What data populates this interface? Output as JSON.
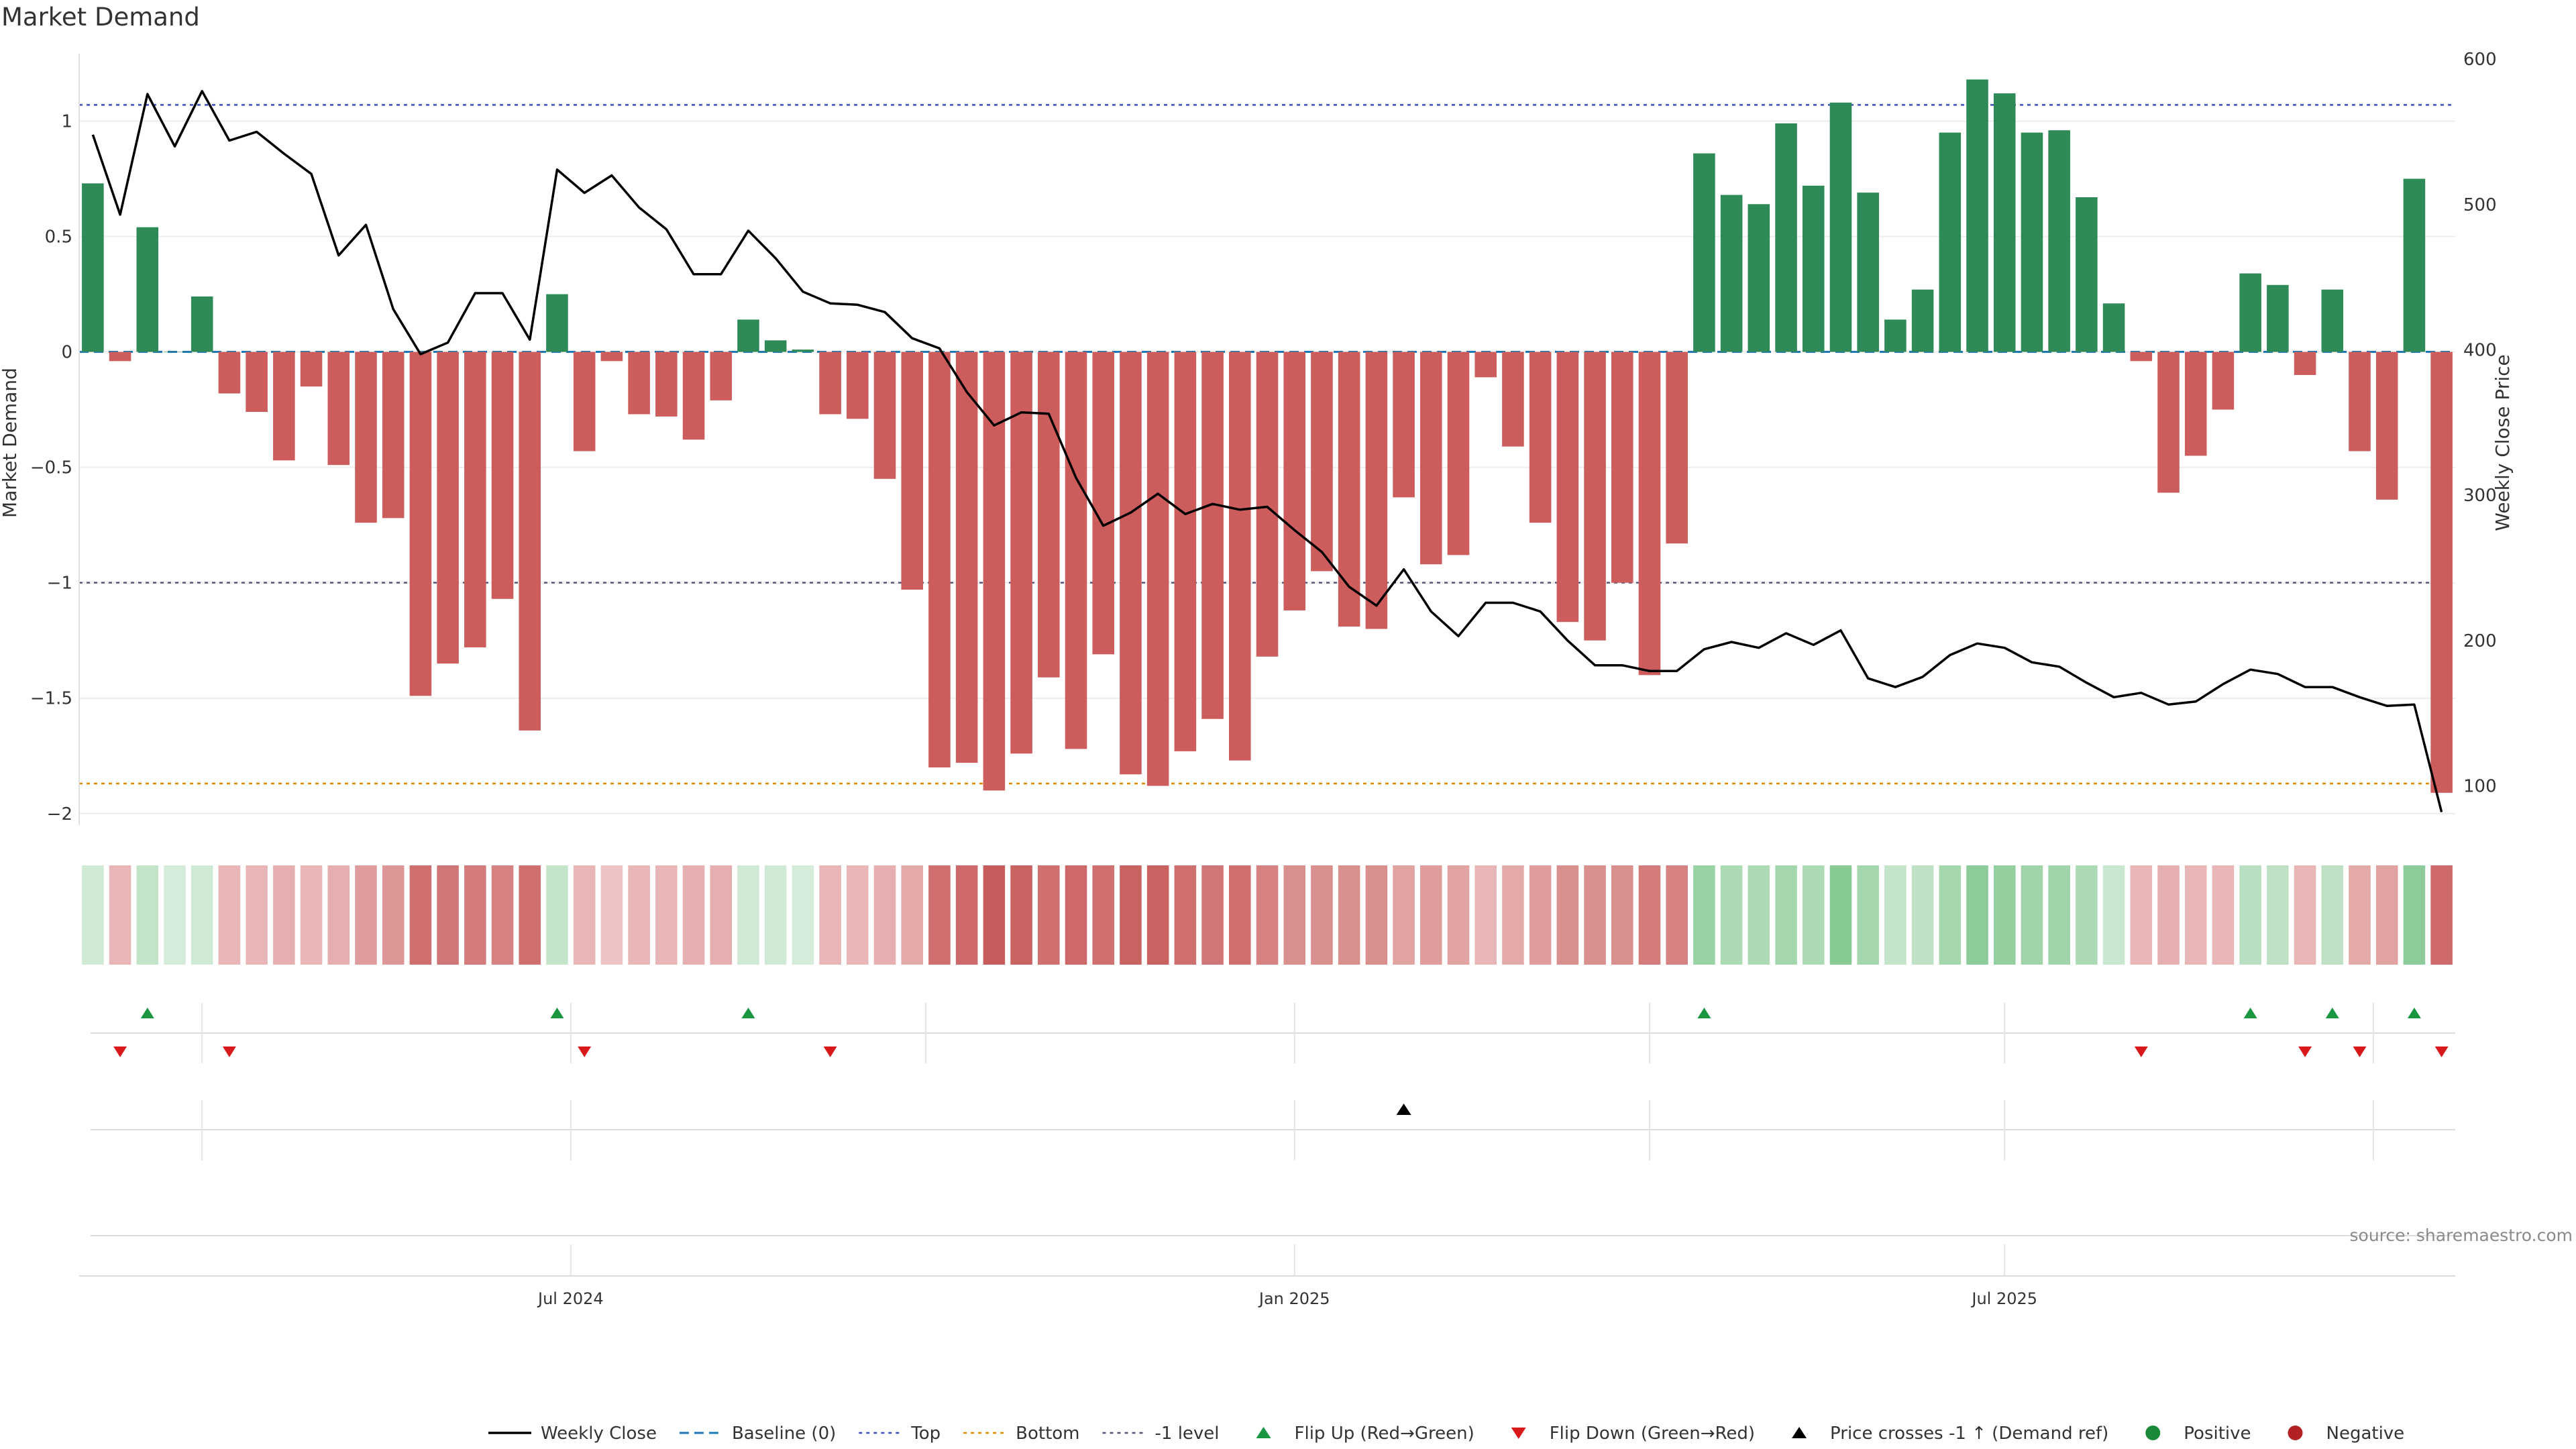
{
  "chart_data": {
    "type": "bar",
    "title": "Market Demand",
    "ylabel": "Market Demand",
    "y2label": "Weekly Close Price",
    "source": "source: sharemaestro.com",
    "ylim": [
      -2.05,
      1.35
    ],
    "y2lim": [
      73,
      613
    ],
    "yticks": [
      1,
      0.5,
      0,
      -0.5,
      -1,
      -1.5,
      -2
    ],
    "y2ticks": [
      600,
      500,
      400,
      300,
      200,
      100
    ],
    "date_ticks": [
      {
        "label": "Jul 2024",
        "week": 17.5
      },
      {
        "label": "Jan 2025",
        "week": 44
      },
      {
        "label": "Jul 2025",
        "week": 70
      }
    ],
    "reference_lines": {
      "baseline": 0,
      "top": 1.07,
      "bottom": -1.87,
      "minus_one": -1
    },
    "bars": [
      0.73,
      -0.04,
      0.54,
      0,
      0.24,
      -0.18,
      -0.26,
      -0.47,
      -0.15,
      -0.49,
      -0.74,
      -0.72,
      -1.49,
      -1.35,
      -1.28,
      -1.07,
      -1.64,
      0.25,
      -0.43,
      -0.04,
      -0.27,
      -0.28,
      -0.38,
      -0.21,
      0.14,
      0.05,
      0.01,
      -0.27,
      -0.29,
      -0.55,
      -1.03,
      -1.8,
      -1.78,
      -1.9,
      -1.74,
      -1.41,
      -1.72,
      -1.31,
      -1.83,
      -1.88,
      -1.73,
      -1.59,
      -1.77,
      -1.32,
      -1.12,
      -0.95,
      -1.19,
      -1.2,
      -0.63,
      -0.92,
      -0.88,
      -0.11,
      -0.41,
      -0.74,
      -1.17,
      -1.25,
      -1.0,
      -1.4,
      -0.83,
      0.86,
      0.68,
      0.64,
      0.99,
      0.72,
      1.08,
      0.69,
      0.14,
      0.27,
      0.95,
      1.18,
      1.12,
      0.95,
      0.96,
      0.67,
      0.21,
      -0.04,
      -0.61,
      -0.45,
      -0.25,
      0.34,
      0.29,
      -0.1,
      0.27,
      -0.43,
      -0.64,
      0.75,
      -1.91
    ],
    "price": [
      548,
      493,
      576,
      540,
      578,
      544,
      550,
      535,
      521,
      465,
      486,
      428,
      397,
      405,
      439,
      439,
      407,
      524,
      508,
      520,
      498,
      483,
      452,
      452,
      482,
      463,
      440,
      432,
      431,
      426,
      408,
      401,
      371,
      348,
      357,
      356,
      312,
      279,
      288,
      301,
      287,
      294,
      290,
      292,
      276,
      261,
      237,
      224,
      249,
      220,
      203,
      226,
      226,
      220,
      200,
      183,
      183,
      179,
      179,
      194,
      199,
      195,
      205,
      197,
      207,
      174,
      168,
      175,
      190,
      198,
      195,
      185,
      182,
      171,
      161,
      164,
      156,
      158,
      170,
      180,
      177,
      168,
      168,
      161,
      155,
      156,
      82
    ],
    "intensity": [
      0.2,
      -0.3,
      0.3,
      0.15,
      0.2,
      -0.3,
      -0.3,
      -0.35,
      -0.3,
      -0.35,
      -0.5,
      -0.55,
      -0.85,
      -0.8,
      -0.75,
      -0.7,
      -0.85,
      0.3,
      -0.3,
      -0.2,
      -0.3,
      -0.3,
      -0.35,
      -0.35,
      0.2,
      0.2,
      0.15,
      -0.3,
      -0.3,
      -0.35,
      -0.4,
      -0.85,
      -0.9,
      -1.0,
      -0.95,
      -0.85,
      -0.9,
      -0.85,
      -0.95,
      -0.95,
      -0.85,
      -0.8,
      -0.85,
      -0.7,
      -0.6,
      -0.6,
      -0.6,
      -0.6,
      -0.45,
      -0.5,
      -0.45,
      -0.3,
      -0.4,
      -0.5,
      -0.6,
      -0.6,
      -0.6,
      -0.75,
      -0.7,
      0.65,
      0.5,
      0.5,
      0.55,
      0.5,
      0.8,
      0.55,
      0.3,
      0.35,
      0.55,
      0.75,
      0.7,
      0.6,
      0.6,
      0.5,
      0.25,
      -0.3,
      -0.35,
      -0.3,
      -0.3,
      0.4,
      0.35,
      -0.3,
      0.35,
      -0.4,
      -0.45,
      0.75,
      -0.9
    ],
    "flip_up": [
      2,
      17,
      24,
      59,
      79,
      82,
      85
    ],
    "flip_down": [
      1,
      5,
      18,
      27,
      75,
      81,
      83,
      86
    ],
    "price_cross_up": [
      48
    ],
    "legend": [
      {
        "label": "Weekly Close",
        "symbol": "line",
        "color": "#000000"
      },
      {
        "label": "Baseline (0)",
        "symbol": "dash",
        "color": "#1f77b4"
      },
      {
        "label": "Top",
        "symbol": "dot",
        "color": "#3b4cc0"
      },
      {
        "label": "Bottom",
        "symbol": "dot",
        "color": "#e08a00"
      },
      {
        "label": "-1 level",
        "symbol": "dot",
        "color": "#555577"
      },
      {
        "label": "Flip Up (Red→Green)",
        "symbol": "tri-up",
        "color": "#1a9641"
      },
      {
        "label": "Flip Down (Green→Red)",
        "symbol": "tri-down",
        "color": "#d7191c"
      },
      {
        "label": "Price crosses -1 ↑ (Demand ref)",
        "symbol": "tri-up",
        "color": "#000000"
      },
      {
        "label": "Positive",
        "symbol": "circle",
        "color": "#1a8a3a"
      },
      {
        "label": "Negative",
        "symbol": "circle",
        "color": "#b22222"
      }
    ],
    "colors": {
      "positive": "#2e8b57",
      "negative": "#cd5c5c",
      "price": "#000000"
    }
  }
}
